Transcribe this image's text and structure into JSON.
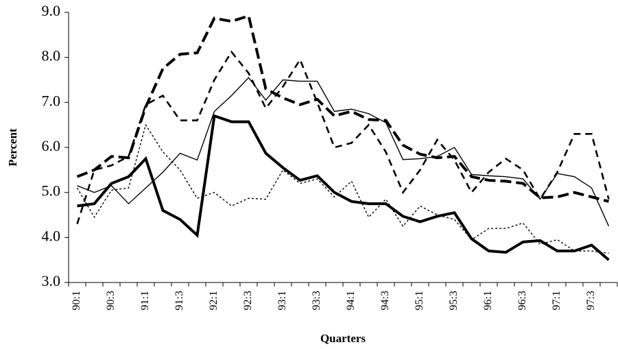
{
  "chart_data": {
    "type": "line",
    "x_label": "Quarters",
    "y_label": "Percent",
    "categories": [
      "90:1",
      null,
      "90:3",
      null,
      "91:1",
      null,
      "91:3",
      null,
      "92:1",
      null,
      "92:3",
      null,
      "93:1",
      null,
      "93:3",
      null,
      "94:1",
      null,
      "94:3",
      null,
      "95:1",
      null,
      "95:3",
      null,
      "96:1",
      null,
      "96:3",
      null,
      "97:1",
      null,
      "97:3",
      null
    ],
    "ylim": [
      3,
      9
    ],
    "yticks": [
      {
        "value": 3,
        "label": "3.0"
      },
      {
        "value": 4,
        "label": "4.0"
      },
      {
        "value": 5,
        "label": "5.0"
      },
      {
        "value": 6,
        "label": "6.0"
      },
      {
        "value": 7,
        "label": "7.0"
      },
      {
        "value": 8,
        "label": "8.0"
      },
      {
        "value": 9,
        "label": "9.0"
      }
    ],
    "grid": false,
    "series": [
      {
        "color": "#000000",
        "line_style": "solid",
        "weight": "heavy",
        "values": [
          4.7,
          4.75,
          5.2,
          5.35,
          5.75,
          4.6,
          4.4,
          4.05,
          6.7,
          6.57,
          6.57,
          5.87,
          5.55,
          5.27,
          5.37,
          5.0,
          4.8,
          4.75,
          4.75,
          4.47,
          4.35,
          4.47,
          4.55,
          3.97,
          3.7,
          3.67,
          3.9,
          3.93,
          3.7,
          3.7,
          3.83,
          3.5
        ]
      },
      {
        "color": "#000000",
        "line_style": "solid",
        "weight": "light",
        "values": [
          5.15,
          5.0,
          5.15,
          4.75,
          5.1,
          5.45,
          5.87,
          5.72,
          6.8,
          7.15,
          7.55,
          7.05,
          7.5,
          7.47,
          7.47,
          6.8,
          6.85,
          6.75,
          6.55,
          5.73,
          5.75,
          5.8,
          6.0,
          5.4,
          5.37,
          5.35,
          5.3,
          4.85,
          5.42,
          5.35,
          5.1,
          4.25
        ]
      },
      {
        "color": "#000000",
        "line_style": "dashed",
        "weight": "heavy",
        "values": [
          5.35,
          5.5,
          5.8,
          5.77,
          6.9,
          7.75,
          8.07,
          8.1,
          8.87,
          8.8,
          8.92,
          7.3,
          7.1,
          6.95,
          7.07,
          6.7,
          6.8,
          6.62,
          6.6,
          6.05,
          5.85,
          5.77,
          5.8,
          5.35,
          5.27,
          5.25,
          5.2,
          4.88,
          4.9,
          5.0,
          4.9,
          4.8
        ]
      },
      {
        "color": "#000000",
        "line_style": "dashed",
        "weight": "medium",
        "values": [
          4.3,
          5.5,
          5.6,
          5.8,
          6.95,
          7.15,
          6.6,
          6.6,
          7.5,
          8.12,
          7.65,
          6.87,
          7.35,
          7.95,
          7.0,
          6.0,
          6.1,
          6.5,
          5.9,
          5.0,
          5.5,
          6.17,
          5.72,
          5.0,
          5.45,
          5.75,
          5.5,
          4.85,
          5.45,
          6.3,
          6.3,
          4.85
        ]
      },
      {
        "color": "#000000",
        "line_style": "dotted",
        "weight": "light",
        "values": [
          5.1,
          4.45,
          5.05,
          5.1,
          6.5,
          5.9,
          5.5,
          4.87,
          5.0,
          4.7,
          4.87,
          4.85,
          5.5,
          5.2,
          5.3,
          4.9,
          5.25,
          4.45,
          4.85,
          4.25,
          4.7,
          4.5,
          4.4,
          3.95,
          4.2,
          4.2,
          4.32,
          3.85,
          3.95,
          3.7,
          3.7,
          3.65
        ]
      }
    ]
  }
}
